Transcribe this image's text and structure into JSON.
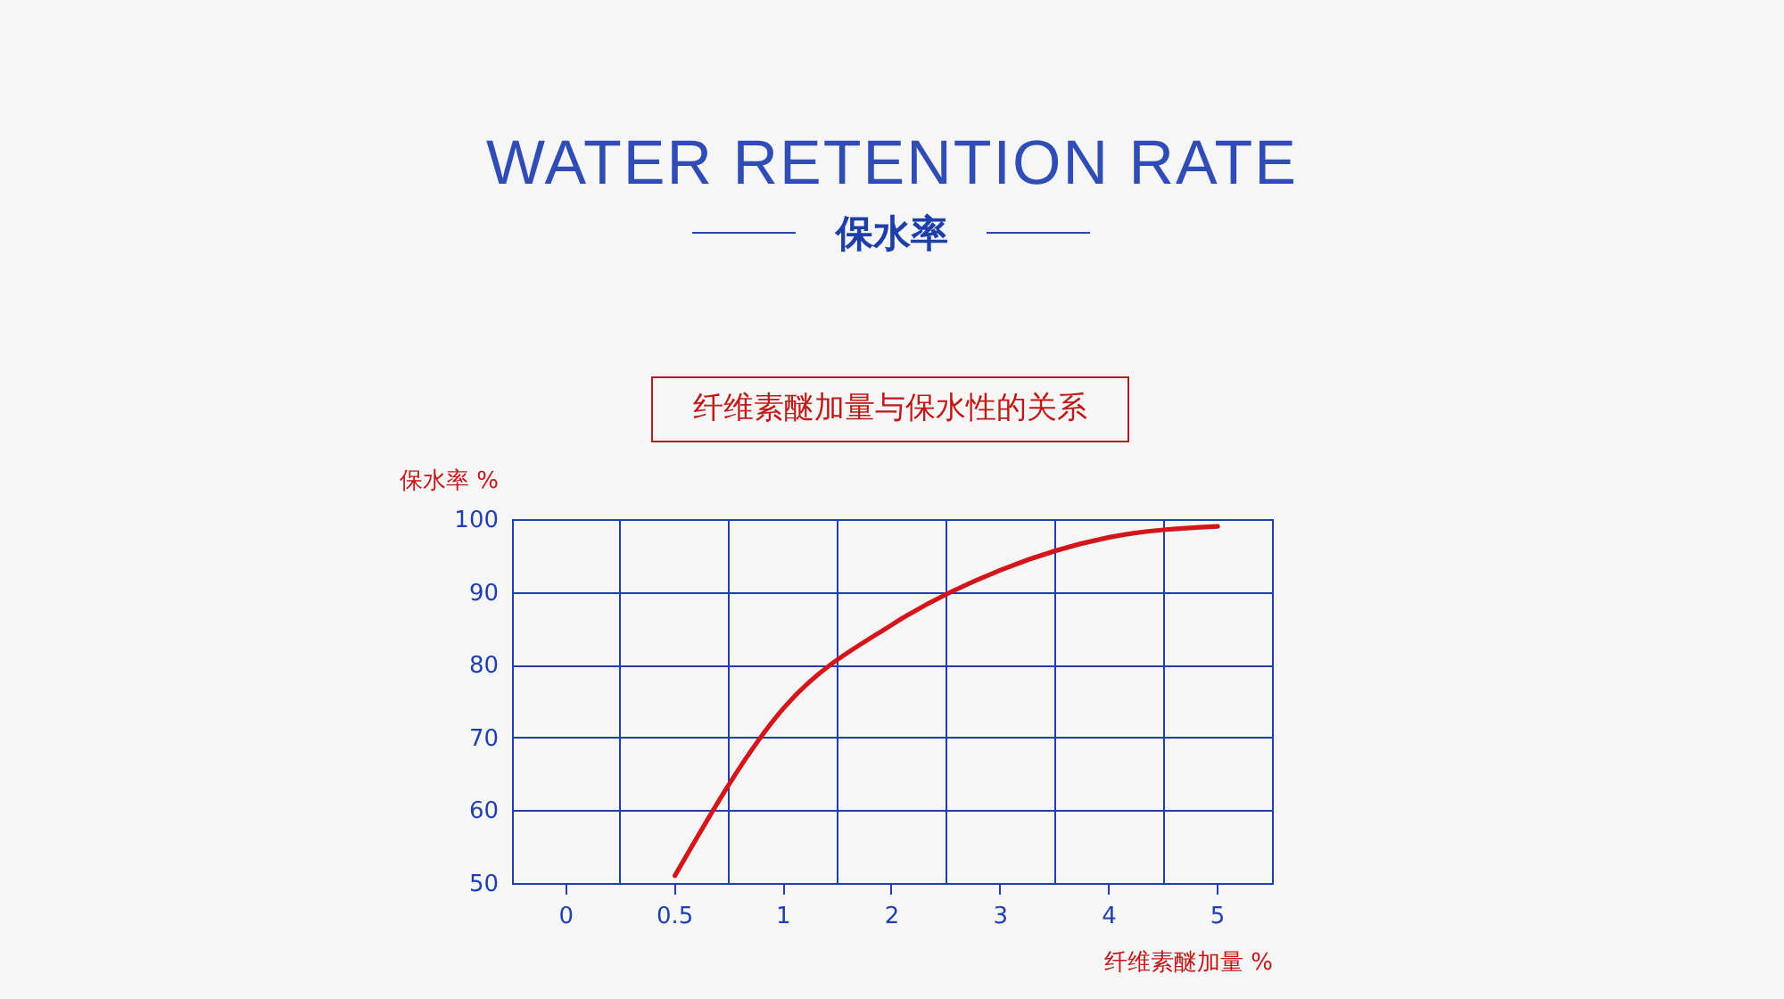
{
  "chart_data": {
    "type": "line",
    "title": "WATER RETENTION RATE",
    "subtitle": "保水率",
    "annotations": [
      "纤维素醚加量与保水性的关系"
    ],
    "ylabel": "保水率 %",
    "xlabel": "纤维素醚加量 %",
    "categories": [
      "0",
      "0.5",
      "1",
      "2",
      "3",
      "4",
      "5"
    ],
    "series": [
      {
        "color": "#d2161b",
        "values": [
          null,
          51,
          74,
          85.5,
          93,
          97.5,
          99
        ]
      }
    ],
    "ylim": [
      50,
      100
    ],
    "yticks": [
      50,
      60,
      70,
      80,
      90,
      100
    ],
    "grid": true,
    "legend": false,
    "marker": "none",
    "line_style": "solid"
  }
}
